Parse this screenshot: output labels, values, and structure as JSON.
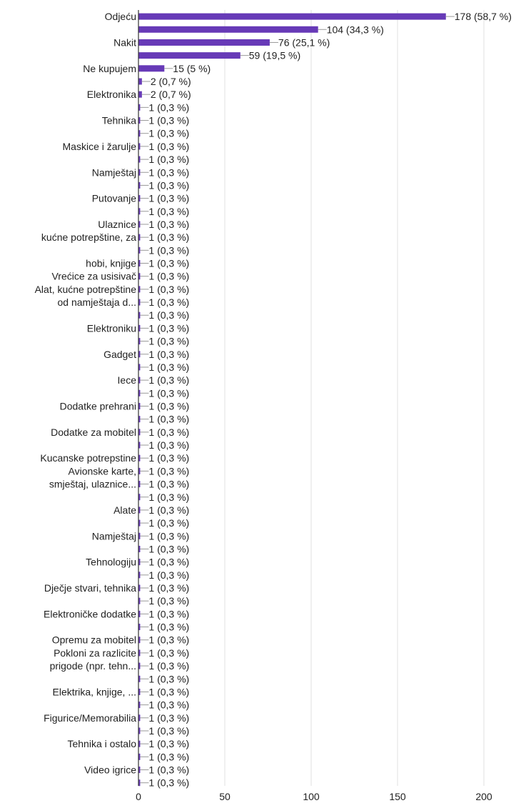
{
  "colors": {
    "bar": "#673ab7",
    "grid": "#e0e0e0",
    "axis": "#333333",
    "leader": "#999999",
    "text": "#222222"
  },
  "chart_data": {
    "type": "bar",
    "orientation": "horizontal",
    "title": "",
    "xlabel": "",
    "ylabel": "",
    "xlim": [
      0,
      200
    ],
    "xticks": [
      0,
      50,
      100,
      150,
      200
    ],
    "grid": true,
    "legend": "none",
    "bars": [
      {
        "label": "Odjeću",
        "value": 178,
        "pct": "58,7 %"
      },
      {
        "label": "",
        "value": 104,
        "pct": "34,3 %"
      },
      {
        "label": "Nakit",
        "value": 76,
        "pct": "25,1 %"
      },
      {
        "label": "",
        "value": 59,
        "pct": "19,5 %"
      },
      {
        "label": "Ne kupujem",
        "value": 15,
        "pct": "5 %"
      },
      {
        "label": "",
        "value": 2,
        "pct": "0,7 %"
      },
      {
        "label": "Elektronika",
        "value": 2,
        "pct": "0,7 %"
      },
      {
        "label": "",
        "value": 1,
        "pct": "0,3 %"
      },
      {
        "label": "Tehnika",
        "value": 1,
        "pct": "0,3 %"
      },
      {
        "label": "",
        "value": 1,
        "pct": "0,3 %"
      },
      {
        "label": "Maskice i žarulje",
        "value": 1,
        "pct": "0,3 %"
      },
      {
        "label": "",
        "value": 1,
        "pct": "0,3 %"
      },
      {
        "label": "Namještaj",
        "value": 1,
        "pct": "0,3 %"
      },
      {
        "label": "",
        "value": 1,
        "pct": "0,3 %"
      },
      {
        "label": "Putovanje",
        "value": 1,
        "pct": "0,3 %"
      },
      {
        "label": "",
        "value": 1,
        "pct": "0,3 %"
      },
      {
        "label": "Ulaznice",
        "value": 1,
        "pct": "0,3 %"
      },
      {
        "label": "kućne potrepštine, za",
        "value": 1,
        "pct": "0,3 %"
      },
      {
        "label": "",
        "value": 1,
        "pct": "0,3 %"
      },
      {
        "label": "hobi, knjige",
        "value": 1,
        "pct": "0,3 %"
      },
      {
        "label": "Vrećice za usisivač",
        "value": 1,
        "pct": "0,3 %"
      },
      {
        "label": "Alat, kućne potrepštine",
        "value": 1,
        "pct": "0,3 %"
      },
      {
        "label": "od namještaja d...",
        "value": 1,
        "pct": "0,3 %"
      },
      {
        "label": "",
        "value": 1,
        "pct": "0,3 %"
      },
      {
        "label": "Elektroniku",
        "value": 1,
        "pct": "0,3 %"
      },
      {
        "label": "",
        "value": 1,
        "pct": "0,3 %"
      },
      {
        "label": "Gadget",
        "value": 1,
        "pct": "0,3 %"
      },
      {
        "label": "",
        "value": 1,
        "pct": "0,3 %"
      },
      {
        "label": "Iece",
        "value": 1,
        "pct": "0,3 %"
      },
      {
        "label": "",
        "value": 1,
        "pct": "0,3 %"
      },
      {
        "label": "Dodatke prehrani",
        "value": 1,
        "pct": "0,3 %"
      },
      {
        "label": "",
        "value": 1,
        "pct": "0,3 %"
      },
      {
        "label": "Dodatke za mobitel",
        "value": 1,
        "pct": "0,3 %"
      },
      {
        "label": "",
        "value": 1,
        "pct": "0,3 %"
      },
      {
        "label": "Kucanske potrepstine",
        "value": 1,
        "pct": "0,3 %"
      },
      {
        "label": "Avionske karte,",
        "value": 1,
        "pct": "0,3 %"
      },
      {
        "label": "smještaj, ulaznice...",
        "value": 1,
        "pct": "0,3 %"
      },
      {
        "label": "",
        "value": 1,
        "pct": "0,3 %"
      },
      {
        "label": "Alate",
        "value": 1,
        "pct": "0,3 %"
      },
      {
        "label": "",
        "value": 1,
        "pct": "0,3 %"
      },
      {
        "label": "Namještaj",
        "value": 1,
        "pct": "0,3 %"
      },
      {
        "label": "",
        "value": 1,
        "pct": "0,3 %"
      },
      {
        "label": "Tehnologiju",
        "value": 1,
        "pct": "0,3 %"
      },
      {
        "label": "",
        "value": 1,
        "pct": "0,3 %"
      },
      {
        "label": "Dječje stvari, tehnika",
        "value": 1,
        "pct": "0,3 %"
      },
      {
        "label": "",
        "value": 1,
        "pct": "0,3 %"
      },
      {
        "label": "Elektroničke dodatke",
        "value": 1,
        "pct": "0,3 %"
      },
      {
        "label": "",
        "value": 1,
        "pct": "0,3 %"
      },
      {
        "label": "Opremu za mobitel",
        "value": 1,
        "pct": "0,3 %"
      },
      {
        "label": "Pokloni za razlicite",
        "value": 1,
        "pct": "0,3 %"
      },
      {
        "label": "prigode (npr. tehn...",
        "value": 1,
        "pct": "0,3 %"
      },
      {
        "label": "",
        "value": 1,
        "pct": "0,3 %"
      },
      {
        "label": "Elektrika, knjige, ...",
        "value": 1,
        "pct": "0,3 %"
      },
      {
        "label": "",
        "value": 1,
        "pct": "0,3 %"
      },
      {
        "label": "Figurice/Memorabilia",
        "value": 1,
        "pct": "0,3 %"
      },
      {
        "label": "",
        "value": 1,
        "pct": "0,3 %"
      },
      {
        "label": "Tehnika i ostalo",
        "value": 1,
        "pct": "0,3 %"
      },
      {
        "label": "",
        "value": 1,
        "pct": "0,3 %"
      },
      {
        "label": "Video igrice",
        "value": 1,
        "pct": "0,3 %"
      },
      {
        "label": "",
        "value": 1,
        "pct": "0,3 %"
      }
    ]
  }
}
